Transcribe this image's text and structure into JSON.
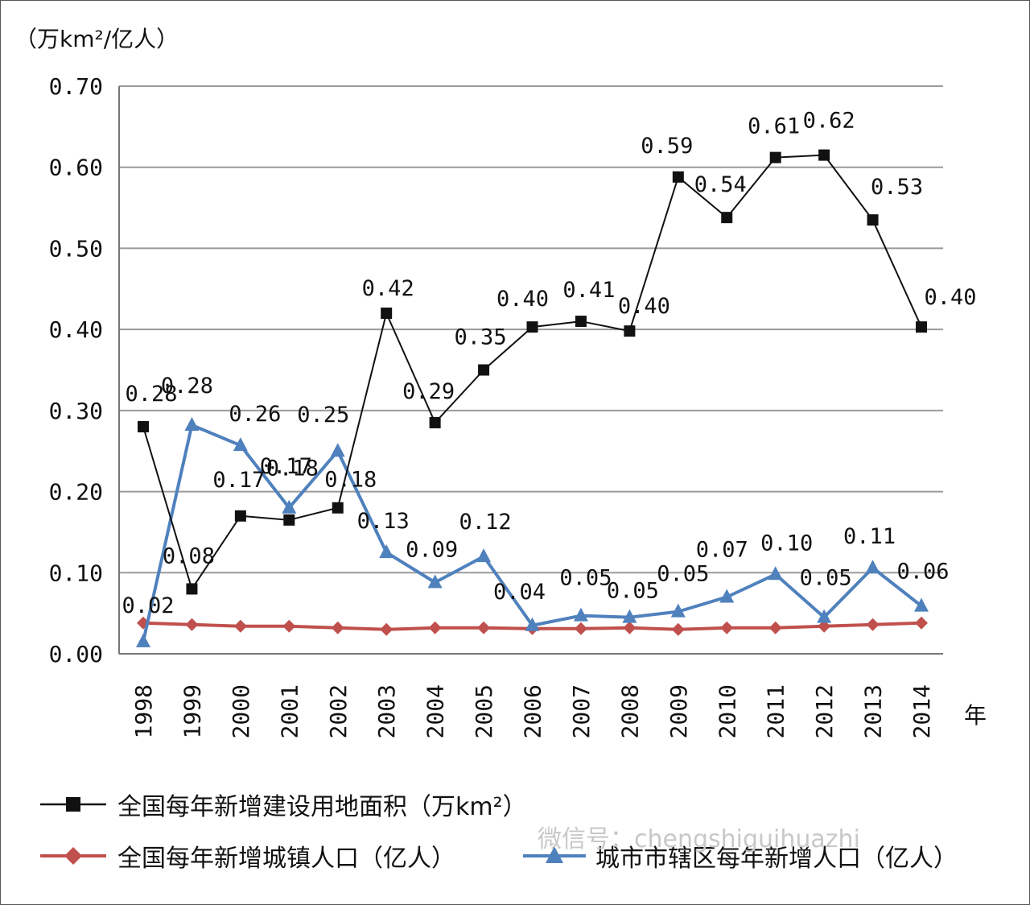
{
  "chart_data": {
    "type": "line",
    "y_unit_label": "（万km²/亿人）",
    "x_unit_label": "年",
    "ylim": [
      0,
      0.7
    ],
    "y_ticks": [
      "0.00",
      "0.10",
      "0.20",
      "0.30",
      "0.40",
      "0.50",
      "0.60",
      "0.70"
    ],
    "grid": true,
    "legend_position": "bottom",
    "categories": [
      "1998",
      "1999",
      "2000",
      "2001",
      "2002",
      "2003",
      "2004",
      "2005",
      "2006",
      "2007",
      "2008",
      "2009",
      "2010",
      "2011",
      "2012",
      "2013",
      "2014"
    ],
    "series": [
      {
        "name": "全国每年新增建设用地面积（万km²）",
        "color": "#111111",
        "marker": "square",
        "values": [
          0.28,
          0.08,
          0.17,
          0.165,
          0.18,
          0.42,
          0.285,
          0.35,
          0.403,
          0.41,
          0.398,
          0.588,
          0.538,
          0.612,
          0.615,
          0.535,
          0.403
        ],
        "labels": [
          "0.28",
          "0.08",
          "0.17",
          "0.17",
          "0.18",
          "0.42",
          "0.29",
          "0.35",
          "0.40",
          "0.41",
          "0.40",
          "0.59",
          "0.54",
          "0.61",
          "0.62",
          "0.53",
          "0.40"
        ]
      },
      {
        "name": "全国每年新增城镇人口（亿人）",
        "color": "#c0504d",
        "marker": "diamond",
        "values": [
          0.038,
          0.036,
          0.034,
          0.034,
          0.032,
          0.03,
          0.032,
          0.032,
          0.031,
          0.031,
          0.032,
          0.03,
          0.032,
          0.032,
          0.034,
          0.036,
          0.038
        ],
        "labels": []
      },
      {
        "name": "城市市辖区每年新增人口（亿人）",
        "color": "#4f81bd",
        "marker": "triangle",
        "values": [
          0.015,
          0.282,
          0.257,
          0.18,
          0.25,
          0.125,
          0.088,
          0.12,
          0.035,
          0.047,
          0.045,
          0.052,
          0.07,
          0.098,
          0.045,
          0.106,
          0.059
        ],
        "labels": [
          "0.02",
          "0.28",
          "0.26",
          "0.18",
          "0.25",
          "0.13",
          "0.09",
          "0.12",
          "0.04",
          "0.05",
          "0.05",
          "0.05",
          "0.07",
          "0.10",
          "0.05",
          "0.11",
          "0.06"
        ]
      }
    ]
  },
  "watermark": "微信号：chengshiguihuazhi"
}
